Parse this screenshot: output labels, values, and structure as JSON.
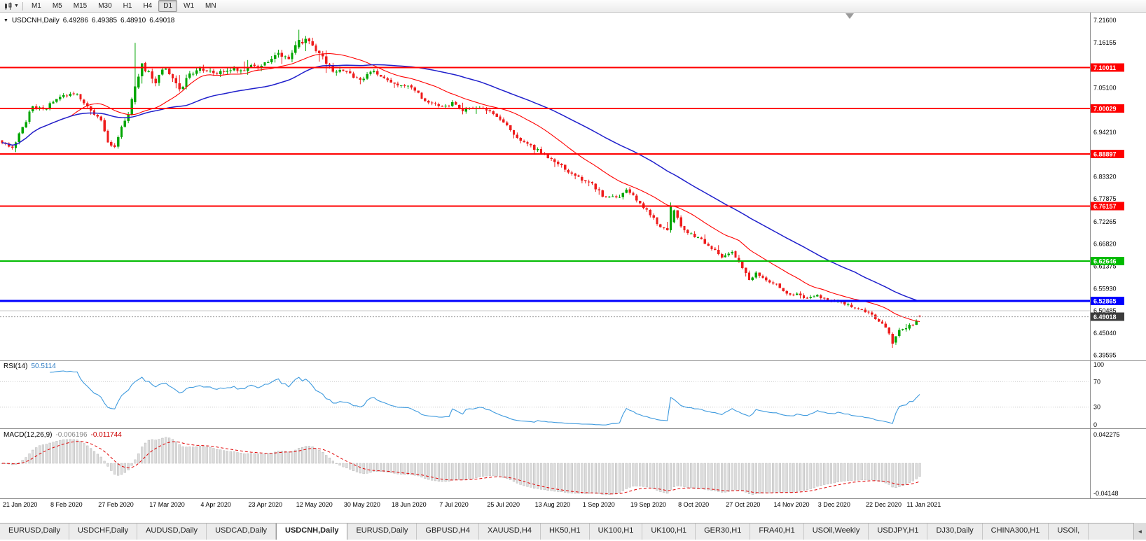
{
  "toolbar": {
    "timeframes": [
      "M1",
      "M5",
      "M15",
      "M30",
      "H1",
      "H4",
      "D1",
      "W1",
      "MN"
    ],
    "active_timeframe": "D1"
  },
  "chart": {
    "symbol_title": "USDCNH,Daily",
    "open": "6.49286",
    "high": "6.49385",
    "low": "6.48910",
    "close": "6.49018",
    "expand_icon": "▼"
  },
  "main_axis": {
    "ticks": [
      "7.21600",
      "7.16155",
      "7.05100",
      "6.94210",
      "6.83320",
      "6.77875",
      "6.72265",
      "6.66820",
      "6.61375",
      "6.55930",
      "6.50485",
      "6.45040",
      "6.39595"
    ],
    "grid_price": 6.50485,
    "levels": [
      {
        "price": 7.10011,
        "label": "7.10011",
        "color": "#FF0000",
        "width": 2
      },
      {
        "price": 7.00029,
        "label": "7.00029",
        "color": "#FF0000",
        "width": 2
      },
      {
        "price": 6.88897,
        "label": "6.88897",
        "color": "#FF0000",
        "width": 2
      },
      {
        "price": 6.76157,
        "label": "6.76157",
        "color": "#FF0000",
        "width": 2
      },
      {
        "price": 6.62646,
        "label": "6.62646",
        "color": "#00BB00",
        "width": 2
      },
      {
        "price": 6.52865,
        "label": "6.52865",
        "color": "#0000FF",
        "width": 3
      }
    ],
    "current": {
      "price": 6.49018,
      "label": "6.49018",
      "color": "#3C3C3C"
    }
  },
  "rsi_panel": {
    "name": "RSI(14)",
    "value": "50.5114",
    "ticks": [
      "100",
      "70",
      "30",
      "0"
    ],
    "levels": [
      70,
      30
    ]
  },
  "macd_panel": {
    "name": "MACD(12,26,9)",
    "value_main": "-0.006196",
    "value_signal": "-0.011744",
    "ticks": [
      "0.042275",
      "-0.04148"
    ]
  },
  "x_axis": [
    [
      "21 Jan 2020",
      1
    ],
    [
      "8 Feb 2020",
      15
    ],
    [
      "27 Feb 2020",
      29
    ],
    [
      "17 Mar 2020",
      44
    ],
    [
      "4 Apr 2020",
      59
    ],
    [
      "23 Apr 2020",
      73
    ],
    [
      "12 May 2020",
      87
    ],
    [
      "30 May 2020",
      101
    ],
    [
      "18 Jun 2020",
      115
    ],
    [
      "7 Jul 2020",
      129
    ],
    [
      "25 Jul 2020",
      143
    ],
    [
      "13 Aug 2020",
      157
    ],
    [
      "1 Sep 2020",
      171
    ],
    [
      "19 Sep 2020",
      185
    ],
    [
      "8 Oct 2020",
      199
    ],
    [
      "27 Oct 2020",
      213
    ],
    [
      "14 Nov 2020",
      227
    ],
    [
      "3 Dec 2020",
      240
    ],
    [
      "22 Dec 2020",
      254
    ],
    [
      "11 Jan 2021",
      266
    ]
  ],
  "tabs": [
    {
      "label": "EURUSD,Daily"
    },
    {
      "label": "USDCHF,Daily"
    },
    {
      "label": "AUDUSD,Daily"
    },
    {
      "label": "USDCAD,Daily"
    },
    {
      "label": "USDCNH,Daily",
      "active": true
    },
    {
      "label": "EURUSD,Daily"
    },
    {
      "label": "GBPUSD,H4"
    },
    {
      "label": "XAUUSD,H4"
    },
    {
      "label": "HK50,H1"
    },
    {
      "label": "UK100,H1"
    },
    {
      "label": "UK100,H1"
    },
    {
      "label": "GER30,H1"
    },
    {
      "label": "FRA40,H1"
    },
    {
      "label": "USOil,Weekly"
    },
    {
      "label": "USDJPY,H1"
    },
    {
      "label": "DJ30,Daily"
    },
    {
      "label": "CHINA300,H1"
    },
    {
      "label": "USOil,"
    }
  ],
  "tab_scroll_icon": "◄",
  "colors": {
    "up": "#00A600",
    "down": "#EE1C1C",
    "rsi": "#3E9ADE",
    "macd_hist": "#DCDCDC",
    "macd_hist_border": "#ADADAD",
    "macd_signal": "#E00000",
    "grid": "#C9C9C9",
    "separator": "#8C8C8C",
    "current_dotted": "#9A9A9A",
    "shift_marker": "#9A9A9A"
  },
  "chart_data": {
    "type": "candlestick",
    "symbol": "USDCNH",
    "timeframe": "Daily",
    "title": "USDCNH,Daily 6.49286 6.49385 6.48910 6.49018",
    "bars": 270,
    "bar_step": 4.87,
    "seed": 7,
    "ylim": [
      6.385,
      7.235
    ],
    "x_range": [
      "21 Jan 2020",
      "11 Jan 2021"
    ],
    "last_bar": {
      "open": 6.49286,
      "high": 6.49385,
      "low": 6.4891,
      "close": 6.49018
    },
    "anchors": [
      [
        0,
        6.92
      ],
      [
        3,
        6.904
      ],
      [
        6,
        6.952
      ],
      [
        9,
        7.008
      ],
      [
        12,
        6.996
      ],
      [
        15,
        7.016
      ],
      [
        18,
        7.03
      ],
      [
        22,
        7.036
      ],
      [
        26,
        6.996
      ],
      [
        29,
        6.968
      ],
      [
        31,
        6.916
      ],
      [
        33,
        6.905
      ],
      [
        35,
        6.952
      ],
      [
        37,
        6.985
      ],
      [
        39,
        7.052
      ],
      [
        41,
        7.105
      ],
      [
        43,
        7.088
      ],
      [
        45,
        7.062
      ],
      [
        47,
        7.098
      ],
      [
        50,
        7.078
      ],
      [
        52,
        7.046
      ],
      [
        55,
        7.084
      ],
      [
        59,
        7.098
      ],
      [
        64,
        7.086
      ],
      [
        68,
        7.094
      ],
      [
        72,
        7.099
      ],
      [
        75,
        7.104
      ],
      [
        78,
        7.114
      ],
      [
        81,
        7.132
      ],
      [
        84,
        7.124
      ],
      [
        86,
        7.152
      ],
      [
        89,
        7.168
      ],
      [
        91,
        7.154
      ],
      [
        94,
        7.124
      ],
      [
        97,
        7.096
      ],
      [
        101,
        7.089
      ],
      [
        105,
        7.068
      ],
      [
        108,
        7.093
      ],
      [
        111,
        7.079
      ],
      [
        116,
        7.059
      ],
      [
        120,
        7.053
      ],
      [
        123,
        7.028
      ],
      [
        126,
        7.011
      ],
      [
        130,
        7.004
      ],
      [
        132,
        7.014
      ],
      [
        135,
        6.996
      ],
      [
        139,
        7.004
      ],
      [
        144,
        6.987
      ],
      [
        147,
        6.966
      ],
      [
        150,
        6.938
      ],
      [
        153,
        6.918
      ],
      [
        156,
        6.903
      ],
      [
        158,
        6.893
      ],
      [
        161,
        6.875
      ],
      [
        164,
        6.858
      ],
      [
        167,
        6.841
      ],
      [
        170,
        6.824
      ],
      [
        173,
        6.813
      ],
      [
        176,
        6.788
      ],
      [
        180,
        6.78
      ],
      [
        183,
        6.798
      ],
      [
        186,
        6.776
      ],
      [
        189,
        6.752
      ],
      [
        192,
        6.718
      ],
      [
        195,
        6.7
      ],
      [
        197,
        6.752
      ],
      [
        199,
        6.712
      ],
      [
        201,
        6.698
      ],
      [
        205,
        6.678
      ],
      [
        208,
        6.658
      ],
      [
        211,
        6.638
      ],
      [
        214,
        6.648
      ],
      [
        217,
        6.612
      ],
      [
        219,
        6.578
      ],
      [
        221,
        6.598
      ],
      [
        224,
        6.581
      ],
      [
        227,
        6.568
      ],
      [
        230,
        6.549
      ],
      [
        233,
        6.544
      ],
      [
        236,
        6.535
      ],
      [
        239,
        6.544
      ],
      [
        242,
        6.527
      ],
      [
        245,
        6.529
      ],
      [
        248,
        6.519
      ],
      [
        251,
        6.509
      ],
      [
        254,
        6.501
      ],
      [
        257,
        6.479
      ],
      [
        259,
        6.46
      ],
      [
        261,
        6.43
      ],
      [
        263,
        6.456
      ],
      [
        265,
        6.464
      ],
      [
        267,
        6.474
      ],
      [
        269,
        6.49
      ]
    ],
    "volatility": [
      [
        0,
        36,
        1.2
      ],
      [
        36,
        100,
        2.1
      ],
      [
        100,
        150,
        1.15
      ],
      [
        150,
        205,
        1.5
      ],
      [
        205,
        254,
        1.05
      ],
      [
        254,
        270,
        1.35
      ]
    ],
    "feature_bars": [
      {
        "i": 39,
        "o": 7.016,
        "h": 7.161,
        "l": 7.01,
        "c": 7.054
      },
      {
        "i": 87,
        "o": 7.15,
        "h": 7.193,
        "l": 7.146,
        "c": 7.168
      },
      {
        "i": 196,
        "o": 6.702,
        "h": 6.77,
        "l": 6.696,
        "c": 6.762
      },
      {
        "i": 261,
        "o": 6.448,
        "h": 6.452,
        "l": 6.414,
        "c": 6.424
      }
    ],
    "indicators": {
      "ma_fast": {
        "period": 21,
        "color": "#FF0000"
      },
      "ma_slow": {
        "period": 55,
        "color": "#2020CC"
      },
      "rsi": {
        "period": 14,
        "value": 50.5114
      },
      "macd": {
        "fast": 12,
        "slow": 26,
        "signal": 9,
        "value_main": -0.006196,
        "value_signal": -0.011744
      }
    }
  }
}
